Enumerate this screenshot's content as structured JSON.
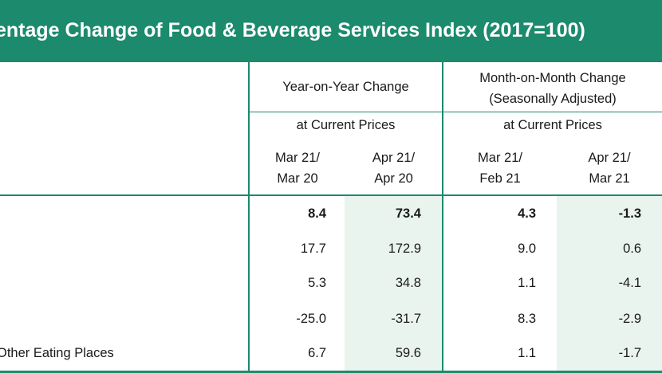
{
  "title": "entage Change of Food & Beverage Services Index (2017=100)",
  "header": {
    "yoy": "Year-on-Year Change",
    "mom_line1": "Month-on-Month Change",
    "mom_line2": "(Seasonally Adjusted)",
    "prices_yoy": "at Current Prices",
    "prices_mom": "at Current Prices",
    "periods": [
      {
        "line1": "Mar 21/",
        "line2": "Mar 20"
      },
      {
        "line1": "Apr 21/",
        "line2": "Apr 20"
      },
      {
        "line1": "Mar 21/",
        "line2": "Feb 21"
      },
      {
        "line1": "Apr 21/",
        "line2": "Mar 21"
      }
    ]
  },
  "rows": [
    {
      "label": "",
      "values": [
        "8.4",
        "73.4",
        "4.3",
        "-1.3"
      ],
      "bold": true
    },
    {
      "label": "",
      "values": [
        "17.7",
        "172.9",
        "9.0",
        "0.6"
      ],
      "bold": false
    },
    {
      "label": "",
      "values": [
        "5.3",
        "34.8",
        "1.1",
        "-4.1"
      ],
      "bold": false
    },
    {
      "label": "",
      "values": [
        "-25.0",
        "-31.7",
        "8.3",
        "-2.9"
      ],
      "bold": false
    },
    {
      "label": "Other Eating Places",
      "values": [
        "6.7",
        "59.6",
        "1.1",
        "-1.7"
      ],
      "bold": false
    }
  ],
  "colors": {
    "accent": "#1c8a6d",
    "shade": "#eaf4ee"
  }
}
